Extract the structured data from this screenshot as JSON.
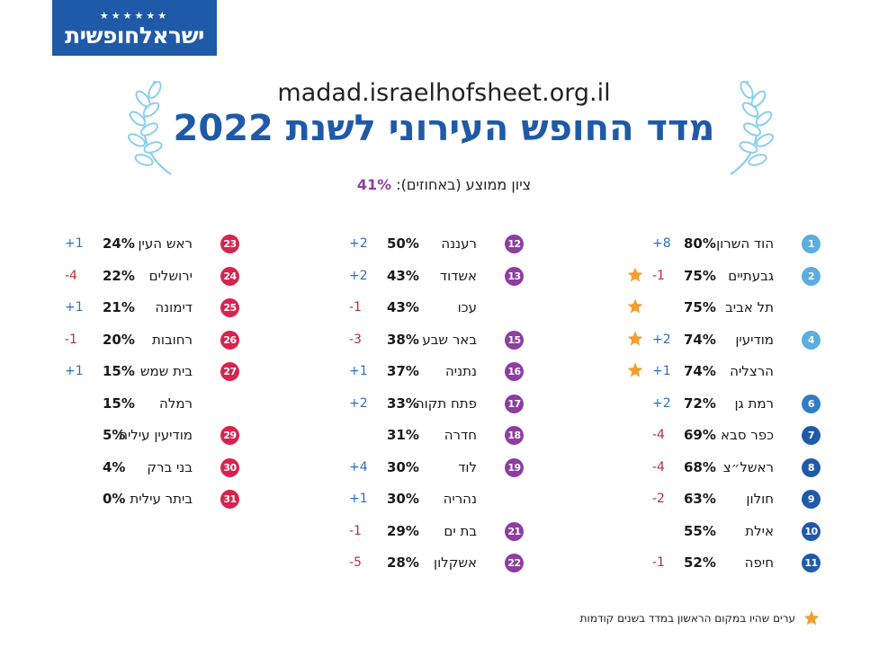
{
  "logo": {
    "text": "ישראלחופשית",
    "stars": "★★★★★★"
  },
  "site_url": "madad.israelhofsheet.org.il",
  "title": "מדד החופש העירוני לשנת 2022",
  "average": {
    "label": "ציון ממוצע (באחוזים):",
    "value": "41%"
  },
  "colors": {
    "col1_badge": [
      "#5aaee0",
      "#2f7dc6",
      "#1f5aa8"
    ],
    "col2_badge": "#8c3fa0",
    "col3_badge": "#d8234f",
    "star": "#f0a030",
    "title": "#1f5aa8"
  },
  "columns": [
    {
      "rows": [
        {
          "rank": "1",
          "name": "הוד השרון",
          "pct": "80%",
          "change": "+8",
          "dir": "up",
          "star": false
        },
        {
          "rank": "2",
          "name": "גבעתיים",
          "pct": "75%",
          "change": "-1",
          "dir": "down",
          "star": true
        },
        {
          "rank": "",
          "name": "תל אביב",
          "pct": "75%",
          "change": "",
          "dir": "",
          "star": true
        },
        {
          "rank": "4",
          "name": "מודיעין",
          "pct": "74%",
          "change": "+2",
          "dir": "up",
          "star": true
        },
        {
          "rank": "",
          "name": "הרצליה",
          "pct": "74%",
          "change": "+1",
          "dir": "up",
          "star": true
        },
        {
          "rank": "6",
          "name": "רמת גן",
          "pct": "72%",
          "change": "+2",
          "dir": "up",
          "star": false
        },
        {
          "rank": "7",
          "name": "כפר סבא",
          "pct": "69%",
          "change": "-4",
          "dir": "down",
          "star": false
        },
        {
          "rank": "8",
          "name": "ראשל״צ",
          "pct": "68%",
          "change": "-4",
          "dir": "down",
          "star": false
        },
        {
          "rank": "9",
          "name": "חולון",
          "pct": "63%",
          "change": "-2",
          "dir": "down",
          "star": false
        },
        {
          "rank": "10",
          "name": "אילת",
          "pct": "55%",
          "change": "",
          "dir": "",
          "star": false
        },
        {
          "rank": "11",
          "name": "חיפה",
          "pct": "52%",
          "change": "-1",
          "dir": "down",
          "star": false
        }
      ]
    },
    {
      "rows": [
        {
          "rank": "12",
          "name": "רעננה",
          "pct": "50%",
          "change": "+2",
          "dir": "up"
        },
        {
          "rank": "13",
          "name": "אשדוד",
          "pct": "43%",
          "change": "+2",
          "dir": "up"
        },
        {
          "rank": "",
          "name": "עכו",
          "pct": "43%",
          "change": "-1",
          "dir": "down"
        },
        {
          "rank": "15",
          "name": "באר שבע",
          "pct": "38%",
          "change": "-3",
          "dir": "down"
        },
        {
          "rank": "16",
          "name": "נתניה",
          "pct": "37%",
          "change": "+1",
          "dir": "up"
        },
        {
          "rank": "17",
          "name": "פתח תקוה",
          "pct": "33%",
          "change": "+2",
          "dir": "up"
        },
        {
          "rank": "18",
          "name": "חדרה",
          "pct": "31%",
          "change": "",
          "dir": ""
        },
        {
          "rank": "19",
          "name": "לוד",
          "pct": "30%",
          "change": "+4",
          "dir": "up"
        },
        {
          "rank": "",
          "name": "נהריה",
          "pct": "30%",
          "change": "+1",
          "dir": "up"
        },
        {
          "rank": "21",
          "name": "בת ים",
          "pct": "29%",
          "change": "-1",
          "dir": "down"
        },
        {
          "rank": "22",
          "name": "אשקלון",
          "pct": "28%",
          "change": "-5",
          "dir": "down"
        }
      ]
    },
    {
      "rows": [
        {
          "rank": "23",
          "name": "ראש העין",
          "pct": "24%",
          "change": "+1",
          "dir": "up"
        },
        {
          "rank": "24",
          "name": "ירושלים",
          "pct": "22%",
          "change": "-4",
          "dir": "down"
        },
        {
          "rank": "25",
          "name": "דימונה",
          "pct": "21%",
          "change": "+1",
          "dir": "up"
        },
        {
          "rank": "26",
          "name": "רחובות",
          "pct": "20%",
          "change": "-1",
          "dir": "down"
        },
        {
          "rank": "27",
          "name": "בית שמש",
          "pct": "15%",
          "change": "+1",
          "dir": "up"
        },
        {
          "rank": "",
          "name": "רמלה",
          "pct": "15%",
          "change": "",
          "dir": ""
        },
        {
          "rank": "29",
          "name": "מודיעין עילית",
          "pct": "5%",
          "change": "",
          "dir": ""
        },
        {
          "rank": "30",
          "name": "בני ברק",
          "pct": "4%",
          "change": "",
          "dir": ""
        },
        {
          "rank": "31",
          "name": "ביתר עילית",
          "pct": "0%",
          "change": "",
          "dir": ""
        }
      ]
    }
  ],
  "footnote": "ערים שהיו במקום הראשון במדד בשנים קודמות"
}
